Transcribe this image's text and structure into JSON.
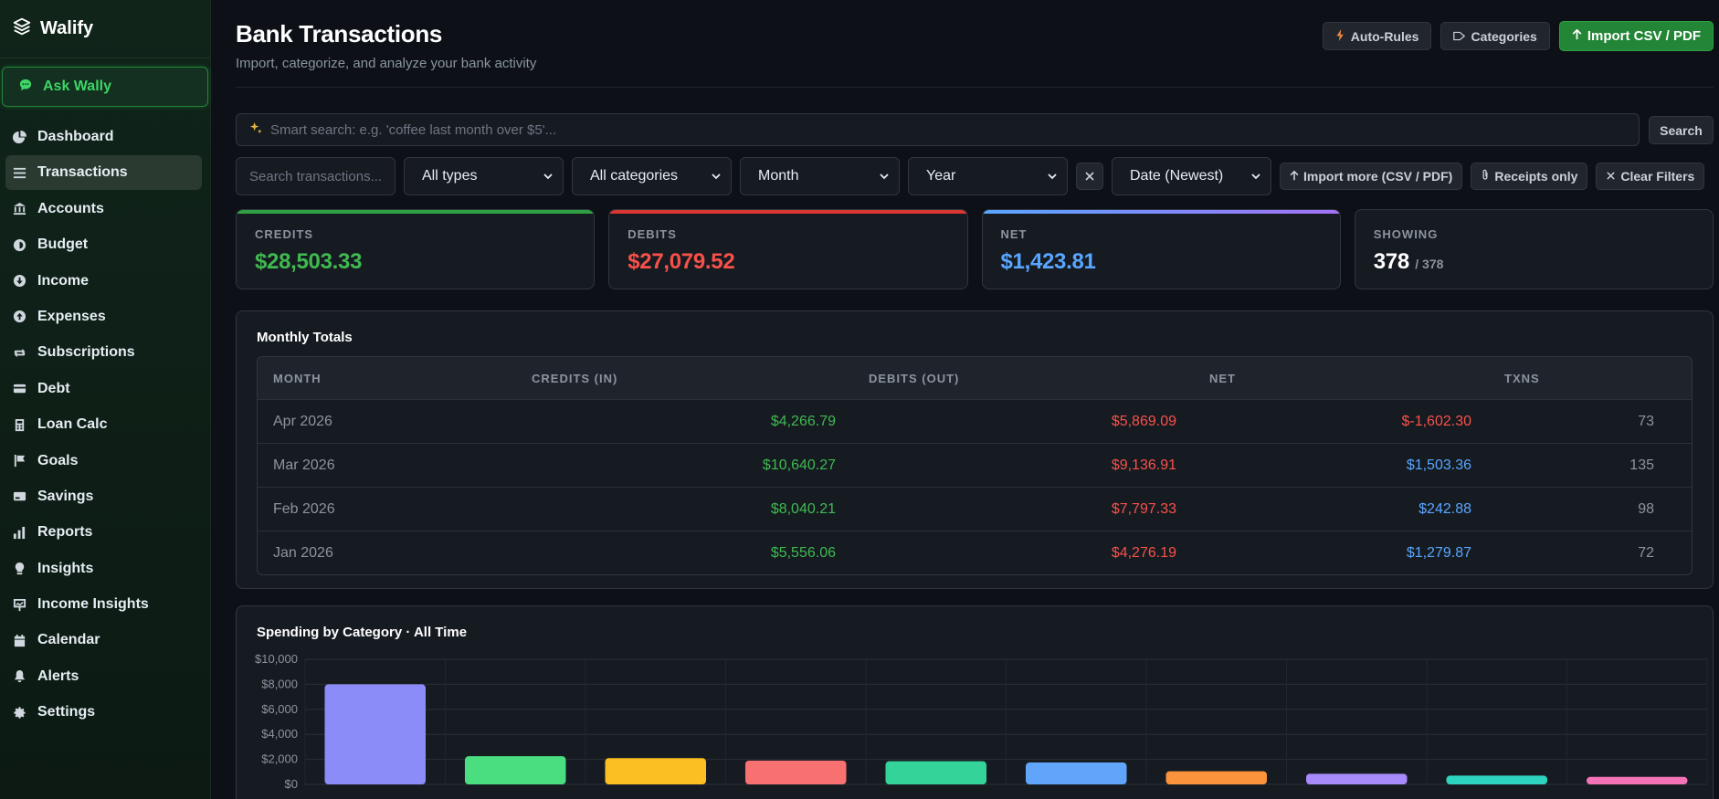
{
  "brand": {
    "name": "Walify"
  },
  "sidebar": {
    "ask_label": "Ask Wally",
    "items": [
      {
        "label": "Dashboard",
        "icon": "pie-chart-icon"
      },
      {
        "label": "Transactions",
        "icon": "list-icon",
        "active": true
      },
      {
        "label": "Accounts",
        "icon": "bank-icon"
      },
      {
        "label": "Budget",
        "icon": "wallet-icon"
      },
      {
        "label": "Income",
        "icon": "arrow-down-circle-icon"
      },
      {
        "label": "Expenses",
        "icon": "arrow-up-circle-icon"
      },
      {
        "label": "Subscriptions",
        "icon": "repeat-icon"
      },
      {
        "label": "Debt",
        "icon": "card-icon"
      },
      {
        "label": "Loan Calc",
        "icon": "calculator-icon"
      },
      {
        "label": "Goals",
        "icon": "flag-icon"
      },
      {
        "label": "Savings",
        "icon": "savings-icon"
      },
      {
        "label": "Reports",
        "icon": "bar-chart-icon"
      },
      {
        "label": "Insights",
        "icon": "bulb-icon"
      },
      {
        "label": "Income Insights",
        "icon": "presentation-icon"
      },
      {
        "label": "Calendar",
        "icon": "calendar-icon"
      },
      {
        "label": "Alerts",
        "icon": "bell-icon"
      },
      {
        "label": "Settings",
        "icon": "gear-icon"
      }
    ]
  },
  "header": {
    "title": "Bank Transactions",
    "subtitle": "Import, categorize, and analyze your bank activity",
    "auto_rules": "Auto-Rules",
    "categories": "Categories",
    "import": "Import CSV / PDF"
  },
  "smart_search": {
    "placeholder": "Smart search: e.g. 'coffee last month over $5'...",
    "button": "Search"
  },
  "filters": {
    "search_placeholder": "Search transactions...",
    "type": "All types",
    "category": "All categories",
    "month": "Month",
    "year": "Year",
    "sort": "Date (Newest)",
    "import_more": "Import more (CSV / PDF)",
    "receipts_only": "Receipts only",
    "clear": "Clear Filters"
  },
  "stats": {
    "credits": {
      "label": "CREDITS",
      "value": "$28,503.33",
      "color": "#3fb950"
    },
    "debits": {
      "label": "DEBITS",
      "value": "$27,079.52",
      "color": "#f85149"
    },
    "net": {
      "label": "NET",
      "value": "$1,423.81",
      "color": "#58a6ff"
    },
    "showing": {
      "label": "SHOWING",
      "value": "378",
      "total": "/ 378"
    }
  },
  "monthly": {
    "title": "Monthly Totals",
    "columns": [
      "MONTH",
      "CREDITS (IN)",
      "DEBITS (OUT)",
      "NET",
      "TXNS"
    ],
    "rows": [
      {
        "month": "Apr 2026",
        "credits": "$4,266.79",
        "debits": "$5,869.09",
        "net": "$-1,602.30",
        "net_sign": "neg",
        "txns": "73"
      },
      {
        "month": "Mar 2026",
        "credits": "$10,640.27",
        "debits": "$9,136.91",
        "net": "$1,503.36",
        "net_sign": "pos",
        "txns": "135"
      },
      {
        "month": "Feb 2026",
        "credits": "$8,040.21",
        "debits": "$7,797.33",
        "net": "$242.88",
        "net_sign": "pos",
        "txns": "98"
      },
      {
        "month": "Jan 2026",
        "credits": "$5,556.06",
        "debits": "$4,276.19",
        "net": "$1,279.87",
        "net_sign": "pos",
        "txns": "72"
      }
    ]
  },
  "chart_data": {
    "type": "bar",
    "title": "Spending by Category · All Time",
    "ylim": [
      0,
      10000
    ],
    "yticks": [
      "$0",
      "$2,000",
      "$4,000",
      "$6,000",
      "$8,000",
      "$10,000"
    ],
    "values": [
      8000,
      2250,
      2100,
      1900,
      1850,
      1750,
      1050,
      850,
      700,
      600
    ],
    "colors": [
      "#8b8cf8",
      "#4ade80",
      "#fbbf24",
      "#f87171",
      "#34d399",
      "#60a5fa",
      "#fb923c",
      "#a78bfa",
      "#2dd4bf",
      "#f472b6"
    ]
  }
}
